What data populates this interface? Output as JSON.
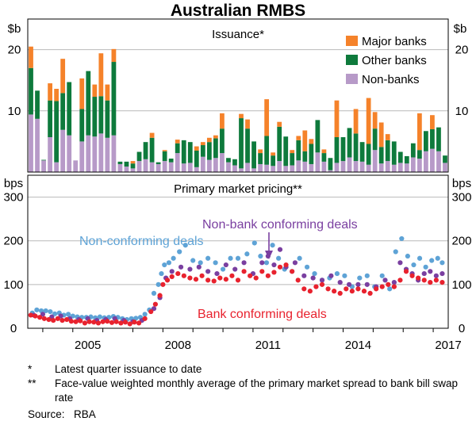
{
  "colors": {
    "major": "#f5822a",
    "other": "#0e7a3c",
    "nonbank": "#b79ac8",
    "noncon": "#5ea3d6",
    "nbcon": "#7a3fa0",
    "bankcon": "#e8222e",
    "grid": "#b9b9b9"
  },
  "chart_data": [
    {
      "type": "bar",
      "title": "Australian RMBS",
      "subtitle": "Issuance*",
      "ylabel_left": "$b",
      "ylabel_right": "$b",
      "ylim": [
        0,
        25
      ],
      "yticks": [
        10,
        20
      ],
      "xlim": [
        2003.5,
        2017.5
      ],
      "legend_position": "top-right",
      "stacked": true,
      "series": [
        {
          "name": "Major banks",
          "color_key": "major",
          "values": [
            3.5,
            0,
            0,
            2.8,
            2,
            5.6,
            0,
            0,
            5,
            0,
            2,
            7,
            2.6,
            2.1,
            0,
            0,
            0.4,
            0,
            0,
            0.8,
            0,
            0.2,
            0,
            0.6,
            0,
            0,
            0.7,
            0.5,
            0.7,
            0.5,
            2.5,
            0,
            0,
            0.7,
            1.5,
            0,
            0.6,
            6,
            0.5,
            0.8,
            0,
            0.5,
            0.7,
            3.4,
            0.8,
            0,
            0.6,
            0,
            6,
            0,
            0,
            4,
            0,
            7.5,
            2.7,
            4,
            1,
            0,
            0,
            0,
            0,
            6,
            0,
            2.3,
            0,
            0
          ]
        },
        {
          "name": "Other banks",
          "color_key": "other",
          "values": [
            7.6,
            4.6,
            0.1,
            6,
            10,
            6,
            8.7,
            0,
            5.3,
            10.5,
            6.5,
            6.1,
            6.1,
            12,
            0.4,
            0.8,
            0.8,
            1.5,
            2.8,
            4,
            0.3,
            1.6,
            0.6,
            1.6,
            3.8,
            3.4,
            2.7,
            1.9,
            2.9,
            3.2,
            4,
            0.7,
            1,
            8.2,
            5.6,
            4.4,
            1.8,
            4.7,
            1.7,
            5.6,
            4.8,
            2,
            3.3,
            1.7,
            3.3,
            5.3,
            1.4,
            2,
            4.2,
            3.9,
            4.8,
            4.5,
            3.2,
            3.4,
            3.5,
            2.7,
            3.4,
            3.8,
            1.8,
            1.2,
            2.3,
            1.4,
            3.3,
            3.2,
            3.9,
            1.2
          ]
        },
        {
          "name": "Non-banks",
          "color_key": "nonbank",
          "values": [
            9.4,
            8.7,
            1.9,
            5.7,
            1.6,
            6.9,
            6,
            1.9,
            5,
            6,
            5.8,
            6.3,
            5.6,
            6,
            1.3,
            0.9,
            0.6,
            1.8,
            2.1,
            1.6,
            1.3,
            1.8,
            1.6,
            3.1,
            1.4,
            1.5,
            0.8,
            2.5,
            2,
            2.3,
            3.1,
            1.6,
            1.1,
            0.6,
            1.5,
            0.6,
            1.3,
            1.2,
            1,
            1.8,
            1,
            1.1,
            1.9,
            1.7,
            1.3,
            3.2,
            1.7,
            0.3,
            1.5,
            1.8,
            2.4,
            1.8,
            1.7,
            1.2,
            3.6,
            1.4,
            1.8,
            1.2,
            1.5,
            1.4,
            2.4,
            2.2,
            3.4,
            3.8,
            3.4,
            1.5
          ]
        }
      ]
    },
    {
      "type": "scatter",
      "title": "Primary market pricing**",
      "ylabel_left": "bps",
      "ylabel_right": "bps",
      "ylim": [
        0,
        350
      ],
      "yticks": [
        0,
        100,
        200,
        300
      ],
      "xlim": [
        2003.5,
        2017.5
      ],
      "xticks": [
        2005,
        2008,
        2011,
        2014,
        2017
      ],
      "series": [
        {
          "name": "Non-conforming deals",
          "color_key": "noncon",
          "x": [
            2003.65,
            2003.8,
            2003.95,
            2004.1,
            2004.25,
            2004.4,
            2004.55,
            2004.7,
            2004.85,
            2005.0,
            2005.15,
            2005.3,
            2005.45,
            2005.6,
            2005.75,
            2005.9,
            2006.05,
            2006.2,
            2006.35,
            2006.5,
            2006.65,
            2006.8,
            2006.95,
            2007.1,
            2007.25,
            2007.4,
            2007.55,
            2007.7,
            2007.85,
            2007.95,
            2008.05,
            2008.2,
            2008.35,
            2008.55,
            2008.75,
            2009.0,
            2009.25,
            2009.5,
            2009.75,
            2010.0,
            2010.25,
            2010.5,
            2010.8,
            2011.05,
            2011.25,
            2011.45,
            2011.65,
            2011.85,
            2012.05,
            2012.3,
            2012.55,
            2012.8,
            2013.05,
            2013.3,
            2013.55,
            2013.8,
            2014.05,
            2014.3,
            2014.55,
            2014.8,
            2015.05,
            2015.3,
            2015.55,
            2015.75,
            2015.95,
            2016.15,
            2016.35,
            2016.55,
            2016.75,
            2016.95,
            2017.15,
            2017.3
          ],
          "y": [
            35,
            42,
            40,
            40,
            38,
            33,
            35,
            30,
            32,
            28,
            26,
            25,
            25,
            26,
            24,
            26,
            24,
            25,
            27,
            25,
            22,
            20,
            22,
            23,
            25,
            32,
            42,
            80,
            100,
            125,
            145,
            150,
            160,
            175,
            190,
            155,
            150,
            160,
            150,
            135,
            160,
            160,
            170,
            195,
            165,
            150,
            190,
            160,
            135,
            130,
            160,
            140,
            125,
            110,
            115,
            125,
            120,
            95,
            115,
            120,
            95,
            120,
            90,
            175,
            205,
            165,
            145,
            160,
            140,
            155,
            160,
            150
          ]
        },
        {
          "name": "Non-bank conforming deals",
          "color_key": "nbcon",
          "x": [
            2003.7,
            2004.0,
            2004.3,
            2004.6,
            2004.9,
            2005.2,
            2005.5,
            2005.8,
            2006.1,
            2006.4,
            2006.7,
            2007.0,
            2007.3,
            2007.7,
            2007.9,
            2008.1,
            2008.3,
            2008.6,
            2008.9,
            2009.2,
            2009.5,
            2009.8,
            2010.1,
            2010.4,
            2010.7,
            2011.0,
            2011.3,
            2011.5,
            2011.7,
            2011.9,
            2012.1,
            2012.4,
            2012.7,
            2013.0,
            2013.3,
            2013.6,
            2013.9,
            2014.2,
            2014.5,
            2014.8,
            2015.1,
            2015.4,
            2015.7,
            2015.9,
            2016.1,
            2016.3,
            2016.5,
            2016.7,
            2016.9,
            2017.1,
            2017.3
          ],
          "y": [
            30,
            32,
            26,
            28,
            22,
            20,
            22,
            18,
            20,
            22,
            18,
            15,
            18,
            45,
            70,
            115,
            130,
            140,
            135,
            140,
            130,
            125,
            145,
            135,
            150,
            125,
            150,
            165,
            145,
            180,
            140,
            150,
            120,
            115,
            110,
            120,
            105,
            100,
            100,
            100,
            95,
            110,
            105,
            150,
            135,
            125,
            110,
            125,
            130,
            120,
            125
          ]
        },
        {
          "name": "Bank conforming deals",
          "color_key": "bankcon",
          "x": [
            2003.6,
            2003.75,
            2003.9,
            2004.05,
            2004.2,
            2004.35,
            2004.5,
            2004.65,
            2004.8,
            2004.95,
            2005.1,
            2005.25,
            2005.4,
            2005.55,
            2005.7,
            2005.85,
            2006.0,
            2006.15,
            2006.3,
            2006.45,
            2006.6,
            2006.75,
            2006.9,
            2007.05,
            2007.2,
            2007.4,
            2007.6,
            2007.75,
            2007.9,
            2008.0,
            2008.15,
            2008.3,
            2008.5,
            2008.7,
            2008.9,
            2009.1,
            2009.3,
            2009.5,
            2009.7,
            2009.9,
            2010.1,
            2010.3,
            2010.5,
            2010.7,
            2010.9,
            2011.1,
            2011.3,
            2011.5,
            2011.7,
            2011.9,
            2012.1,
            2012.3,
            2012.5,
            2012.7,
            2012.9,
            2013.1,
            2013.3,
            2013.5,
            2013.7,
            2013.9,
            2014.1,
            2014.3,
            2014.5,
            2014.7,
            2014.9,
            2015.1,
            2015.3,
            2015.5,
            2015.7,
            2015.9,
            2016.1,
            2016.3,
            2016.5,
            2016.7,
            2016.9,
            2017.1,
            2017.3
          ],
          "y": [
            30,
            28,
            25,
            22,
            20,
            18,
            22,
            18,
            20,
            16,
            15,
            17,
            12,
            15,
            14,
            12,
            15,
            16,
            13,
            15,
            12,
            14,
            10,
            14,
            12,
            22,
            38,
            55,
            75,
            100,
            110,
            118,
            125,
            120,
            115,
            112,
            120,
            110,
            108,
            115,
            112,
            120,
            110,
            130,
            120,
            115,
            130,
            120,
            128,
            140,
            145,
            130,
            110,
            90,
            85,
            95,
            100,
            90,
            85,
            80,
            90,
            85,
            90,
            85,
            80,
            90,
            95,
            100,
            95,
            110,
            130,
            120,
            115,
            110,
            105,
            110,
            105
          ]
        }
      ],
      "annotations": [
        "Non-conforming deals",
        "Non-bank conforming deals",
        "Bank conforming deals"
      ]
    }
  ],
  "notes": [
    {
      "marker": "*",
      "text": "Latest quarter issuance to date"
    },
    {
      "marker": "**",
      "text": "Face-value weighted monthly average of the primary market spread to bank bill swap rate"
    }
  ],
  "source": {
    "label": "Source:",
    "text": "RBA"
  }
}
